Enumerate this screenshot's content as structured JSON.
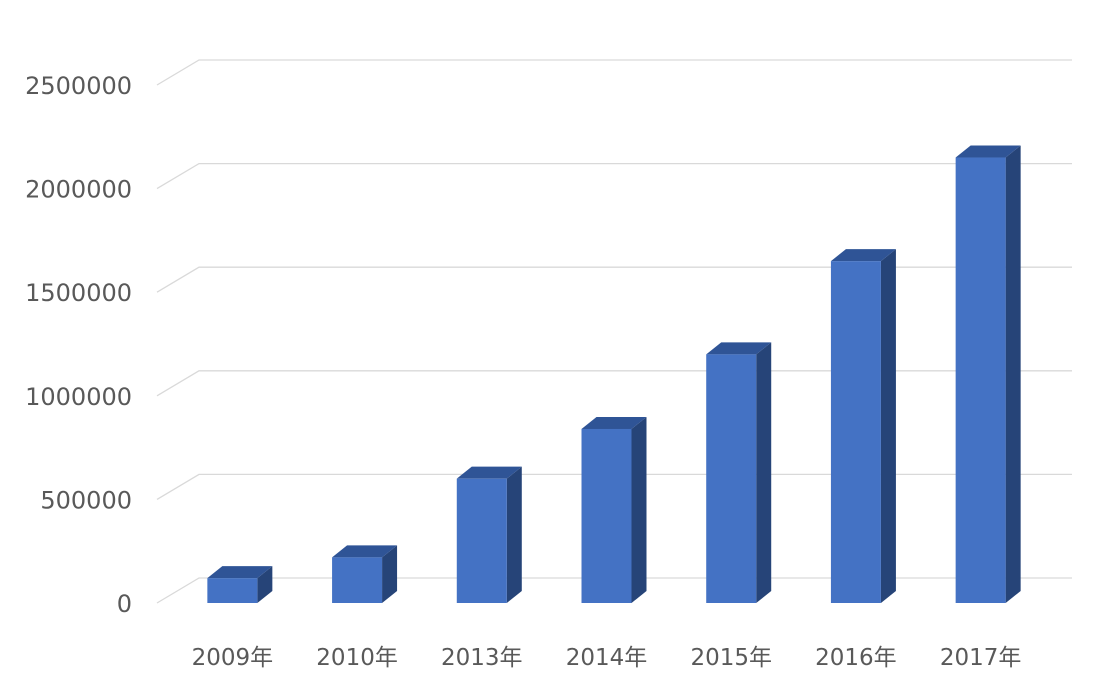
{
  "chart_data": {
    "type": "bar",
    "style": "3d-column",
    "categories": [
      "2009年",
      "2010年",
      "2013年",
      "2014年",
      "2015年",
      "2016年",
      "2017年"
    ],
    "values": [
      120000,
      220000,
      600000,
      840000,
      1200000,
      1650000,
      2150000
    ],
    "ylim": [
      0,
      2500000
    ],
    "yticks": [
      0,
      500000,
      1000000,
      1500000,
      2000000,
      2500000
    ],
    "grid": true,
    "legend": "none",
    "colors": {
      "front": "#4472C4",
      "top": "#2F5496",
      "side": "#264478",
      "grid": "#D9D9D9",
      "text": "#595959"
    }
  }
}
